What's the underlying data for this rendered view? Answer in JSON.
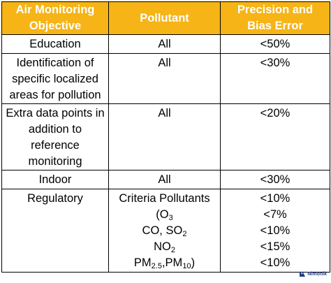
{
  "table": {
    "headers": [
      [
        "Air Monitoring",
        "Objective"
      ],
      [
        "Pollutant"
      ],
      [
        "Precision and",
        "Bias Error"
      ]
    ],
    "rows": [
      {
        "objective": [
          "Education"
        ],
        "pollutant": "All",
        "error": "<50%"
      },
      {
        "objective": [
          "Identification of",
          "specific localized",
          "areas for pollution"
        ],
        "pollutant": "All",
        "error": "<30%"
      },
      {
        "objective": [
          "Extra data points in",
          "addition to",
          "reference",
          "monitoring"
        ],
        "pollutant": "All",
        "error": "<20%"
      },
      {
        "objective": [
          "Indoor"
        ],
        "pollutant": "All",
        "error": "<30%"
      },
      {
        "objective": [
          "Regulatory"
        ],
        "pollutants": [
          "Criteria Pollutants",
          {
            "pre": "(O",
            "sub": "3"
          },
          {
            "pre": "CO, SO",
            "sub": "2"
          },
          {
            "pre": "NO",
            "sub": "2"
          },
          {
            "pre": "PM",
            "sub": "2.5",
            "mid": ",PM",
            "sub2": "10",
            "post": ")"
          }
        ],
        "errors": [
          "<10%",
          "<7%",
          "<10%",
          "<15%",
          "<10%"
        ]
      }
    ]
  },
  "logo": {
    "text": "Nimonik",
    "color": "#1f3a93"
  }
}
